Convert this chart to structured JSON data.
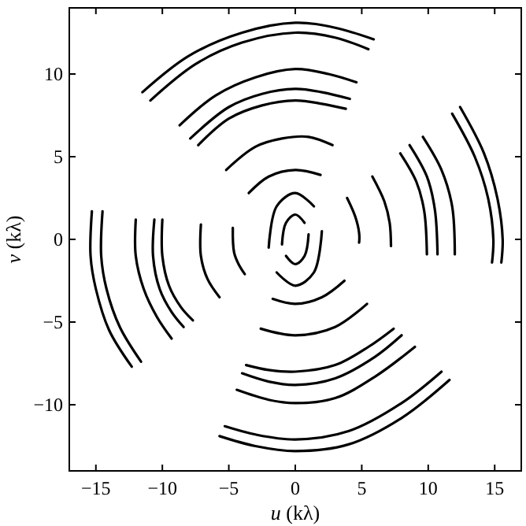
{
  "chart_data": {
    "type": "line",
    "xlabel": "u (kλ)",
    "ylabel": "v (kλ)",
    "xlim": [
      -17,
      17
    ],
    "ylim": [
      -14,
      14
    ],
    "xticks": [
      -15,
      -10,
      -5,
      0,
      5,
      10,
      15
    ],
    "yticks": [
      -10,
      -5,
      0,
      5,
      10
    ],
    "grid": false,
    "marker": "none",
    "line_style": "solid",
    "series": [
      {
        "color": "#000000",
        "x": [
          -11.5,
          -8,
          -4,
          0,
          3,
          5.9
        ],
        "values": [
          8.9,
          11.1,
          12.5,
          13.1,
          12.8,
          12.1
        ]
      },
      {
        "color": "#000000",
        "x": [
          -10.9,
          -7.5,
          -4,
          0,
          3,
          5.5
        ],
        "values": [
          8.4,
          10.6,
          11.9,
          12.5,
          12.2,
          11.5
        ]
      },
      {
        "color": "#000000",
        "x": [
          -8.7,
          -6,
          -3,
          0,
          2.5,
          4.6
        ],
        "values": [
          6.9,
          8.7,
          9.8,
          10.3,
          10,
          9.5
        ]
      },
      {
        "color": "#000000",
        "x": [
          -7.9,
          -5,
          -2.5,
          0,
          2,
          4.1
        ],
        "values": [
          6.1,
          8,
          8.8,
          9.1,
          8.9,
          8.5
        ]
      },
      {
        "color": "#000000",
        "x": [
          -7.3,
          -5,
          -2.5,
          0,
          2,
          3.8
        ],
        "values": [
          5.7,
          7.3,
          8.1,
          8.4,
          8.2,
          7.9
        ]
      },
      {
        "color": "#000000",
        "x": [
          -5.2,
          -3,
          -1,
          1,
          2.8
        ],
        "values": [
          4.2,
          5.6,
          6.1,
          6.2,
          5.7
        ]
      },
      {
        "color": "#000000",
        "x": [
          -3.5,
          -2,
          0,
          1.9
        ],
        "values": [
          2.8,
          3.8,
          4.2,
          3.9
        ]
      },
      {
        "color": "#000000",
        "x": [
          -5.7,
          -3,
          0,
          4,
          8,
          11.6
        ],
        "values": [
          -11.9,
          -12.5,
          -12.8,
          -12.4,
          -10.8,
          -8.5
        ]
      },
      {
        "color": "#000000",
        "x": [
          -5.3,
          -3,
          0,
          4,
          8,
          11
        ],
        "values": [
          -11.3,
          -11.8,
          -12.1,
          -11.6,
          -9.9,
          -8
        ]
      },
      {
        "color": "#000000",
        "x": [
          -4.4,
          -2,
          0,
          3,
          6,
          9
        ],
        "values": [
          -9.1,
          -9.7,
          -9.9,
          -9.6,
          -8.3,
          -6.5
        ]
      },
      {
        "color": "#000000",
        "x": [
          -4,
          -2,
          0,
          3,
          6,
          8
        ],
        "values": [
          -8.1,
          -8.6,
          -8.8,
          -8.4,
          -7.1,
          -5.8
        ]
      },
      {
        "color": "#000000",
        "x": [
          -3.7,
          -2,
          0,
          3,
          5.5,
          7.4
        ],
        "values": [
          -7.6,
          -7.9,
          -8,
          -7.6,
          -6.5,
          -5.4
        ]
      },
      {
        "color": "#000000",
        "x": [
          -2.6,
          0,
          3,
          5.4
        ],
        "values": [
          -5.4,
          -5.8,
          -5.3,
          -3.9
        ]
      },
      {
        "color": "#000000",
        "x": [
          -1.7,
          0,
          2,
          3.7
        ],
        "values": [
          -3.6,
          -3.9,
          -3.5,
          -2.5
        ]
      },
      {
        "color": "#000000",
        "x": [
          -15.3,
          -15.4,
          -15,
          -14,
          -12.3
        ],
        "values": [
          1.7,
          -1,
          -3,
          -5.5,
          -7.7
        ]
      },
      {
        "color": "#000000",
        "x": [
          -14.5,
          -14.6,
          -14.2,
          -13.2,
          -11.6
        ],
        "values": [
          1.7,
          -1,
          -3,
          -5.3,
          -7.4
        ]
      },
      {
        "color": "#000000",
        "x": [
          -12,
          -12,
          -11.4,
          -10.4,
          -9.3
        ],
        "values": [
          1.2,
          -1,
          -3,
          -4.7,
          -6
        ]
      },
      {
        "color": "#000000",
        "x": [
          -10.6,
          -10.7,
          -10.2,
          -9.3,
          -8.4
        ],
        "values": [
          1.2,
          -1,
          -3,
          -4.4,
          -5.3
        ]
      },
      {
        "color": "#000000",
        "x": [
          -10,
          -10,
          -9.5,
          -8.6,
          -7.7
        ],
        "values": [
          1.2,
          -1,
          -2.8,
          -4.1,
          -4.9
        ]
      },
      {
        "color": "#000000",
        "x": [
          -7.1,
          -7.1,
          -6.6,
          -5.7
        ],
        "values": [
          0.9,
          -1,
          -2.4,
          -3.5
        ]
      },
      {
        "color": "#000000",
        "x": [
          -4.7,
          -4.6,
          -4.2,
          -3.8
        ],
        "values": [
          0.7,
          -0.8,
          -1.6,
          -2.1
        ]
      },
      {
        "color": "#000000",
        "x": [
          12.4,
          14.2,
          15.2,
          15.6,
          15.5
        ],
        "values": [
          8,
          5.2,
          2.5,
          0,
          -1.4
        ]
      },
      {
        "color": "#000000",
        "x": [
          11.8,
          13.5,
          14.5,
          14.9,
          14.8
        ],
        "values": [
          7.6,
          5,
          2.5,
          0,
          -1.4
        ]
      },
      {
        "color": "#000000",
        "x": [
          9.6,
          11,
          11.8,
          12
        ],
        "values": [
          6.2,
          4.2,
          2,
          -0.9
        ]
      },
      {
        "color": "#000000",
        "x": [
          8.6,
          9.9,
          10.5,
          10.7
        ],
        "values": [
          5.7,
          3.8,
          1.8,
          -0.9
        ]
      },
      {
        "color": "#000000",
        "x": [
          7.9,
          9.1,
          9.7,
          9.9
        ],
        "values": [
          5.2,
          3.5,
          1.7,
          -0.9
        ]
      },
      {
        "color": "#000000",
        "x": [
          5.8,
          6.7,
          7.1,
          7.2
        ],
        "values": [
          3.8,
          2.3,
          1,
          -0.4
        ]
      },
      {
        "color": "#000000",
        "x": [
          3.9,
          4.5,
          4.8,
          4.8
        ],
        "values": [
          2.5,
          1.4,
          0.4,
          -0.2
        ]
      },
      {
        "color": "#000000",
        "x": [
          -2,
          -1.4,
          0,
          1.4
        ],
        "values": [
          -0.5,
          2,
          2.8,
          2
        ]
      },
      {
        "color": "#000000",
        "x": [
          -1.4,
          0,
          1.4,
          2
        ],
        "values": [
          -2,
          -2.8,
          -2,
          0.5
        ]
      },
      {
        "color": "#000000",
        "x": [
          -1,
          -0.7,
          0,
          0.7
        ],
        "values": [
          -0.3,
          1,
          1.5,
          1
        ]
      },
      {
        "color": "#000000",
        "x": [
          -0.7,
          0,
          0.7,
          1
        ],
        "values": [
          -1,
          -1.5,
          -1,
          0.3
        ]
      }
    ]
  }
}
